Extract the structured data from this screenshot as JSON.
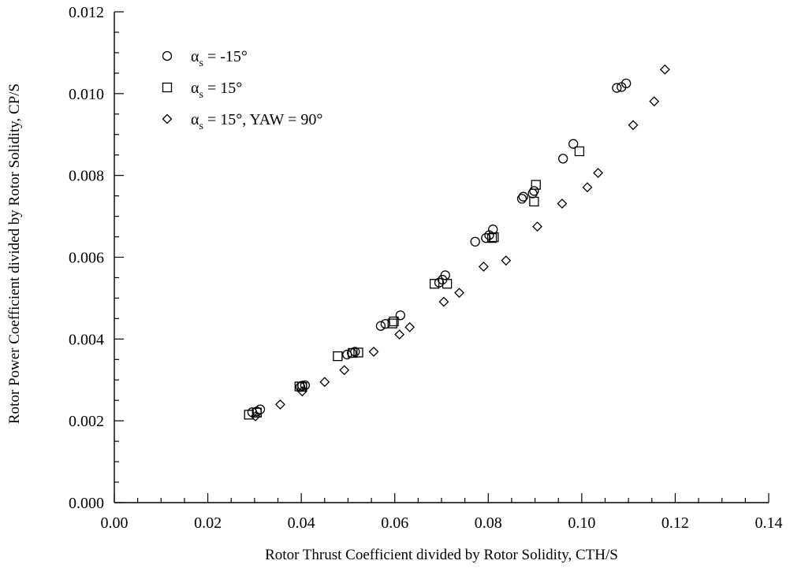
{
  "chart_data": {
    "type": "scatter",
    "xlabel": "Rotor Thrust Coefficient divided by Rotor Solidity, CTH/S",
    "ylabel": "Rotor Power Coefficient divided by Rotor Solidity, CP/S",
    "xlim": [
      0,
      0.14
    ],
    "ylim": [
      0,
      0.012
    ],
    "x_ticks": [
      "0.00",
      "0.02",
      "0.04",
      "0.06",
      "0.08",
      "0.10",
      "0.12",
      "0.14"
    ],
    "y_ticks": [
      "0.000",
      "0.002",
      "0.004",
      "0.006",
      "0.008",
      "0.010",
      "0.012"
    ],
    "grid": false,
    "legend_position": "top-left",
    "series": [
      {
        "name": "αs = -15°",
        "name_parts": [
          "α",
          "s",
          " = -15°"
        ],
        "marker": "circle",
        "points": [
          [
            0.0295,
            0.00221
          ],
          [
            0.0305,
            0.00223
          ],
          [
            0.0312,
            0.00228
          ],
          [
            0.0398,
            0.00283
          ],
          [
            0.0402,
            0.00286
          ],
          [
            0.0408,
            0.00287
          ],
          [
            0.0498,
            0.00362
          ],
          [
            0.0508,
            0.00366
          ],
          [
            0.0515,
            0.00369
          ],
          [
            0.057,
            0.00432
          ],
          [
            0.058,
            0.00437
          ],
          [
            0.0612,
            0.00458
          ],
          [
            0.0695,
            0.00538
          ],
          [
            0.0702,
            0.00545
          ],
          [
            0.0708,
            0.00556
          ],
          [
            0.0772,
            0.00638
          ],
          [
            0.0795,
            0.00647
          ],
          [
            0.0802,
            0.00654
          ],
          [
            0.081,
            0.00668
          ],
          [
            0.0872,
            0.00743
          ],
          [
            0.0875,
            0.00748
          ],
          [
            0.0895,
            0.00756
          ],
          [
            0.0898,
            0.00762
          ],
          [
            0.096,
            0.00841
          ],
          [
            0.0982,
            0.00877
          ],
          [
            0.1075,
            0.01014
          ],
          [
            0.1085,
            0.01016
          ],
          [
            0.1095,
            0.01025
          ]
        ]
      },
      {
        "name": "αs = 15°",
        "name_parts": [
          "α",
          "s",
          " = 15°"
        ],
        "marker": "square",
        "points": [
          [
            0.0288,
            0.00215
          ],
          [
            0.0305,
            0.0022
          ],
          [
            0.0396,
            0.00284
          ],
          [
            0.0402,
            0.00283
          ],
          [
            0.0478,
            0.00358
          ],
          [
            0.051,
            0.00366
          ],
          [
            0.0522,
            0.00367
          ],
          [
            0.0595,
            0.00438
          ],
          [
            0.0598,
            0.00443
          ],
          [
            0.0685,
            0.00535
          ],
          [
            0.0712,
            0.00535
          ],
          [
            0.0808,
            0.00647
          ],
          [
            0.0812,
            0.00649
          ],
          [
            0.0898,
            0.00736
          ],
          [
            0.0902,
            0.00777
          ],
          [
            0.0995,
            0.00859
          ]
        ]
      },
      {
        "name": "αs = 15°, YAW = 90°",
        "name_parts": [
          "α",
          "s",
          " = 15°, YAW = 90°"
        ],
        "marker": "diamond",
        "points": [
          [
            0.0302,
            0.00211
          ],
          [
            0.0355,
            0.0024
          ],
          [
            0.0402,
            0.00272
          ],
          [
            0.045,
            0.00295
          ],
          [
            0.0492,
            0.00324
          ],
          [
            0.0555,
            0.00369
          ],
          [
            0.061,
            0.00411
          ],
          [
            0.0632,
            0.00429
          ],
          [
            0.0705,
            0.00491
          ],
          [
            0.0738,
            0.00513
          ],
          [
            0.079,
            0.00577
          ],
          [
            0.0838,
            0.00592
          ],
          [
            0.0905,
            0.00675
          ],
          [
            0.0958,
            0.00731
          ],
          [
            0.1012,
            0.00771
          ],
          [
            0.1035,
            0.00806
          ],
          [
            0.111,
            0.00923
          ],
          [
            0.1155,
            0.00981
          ],
          [
            0.1178,
            0.01059
          ]
        ]
      }
    ]
  }
}
